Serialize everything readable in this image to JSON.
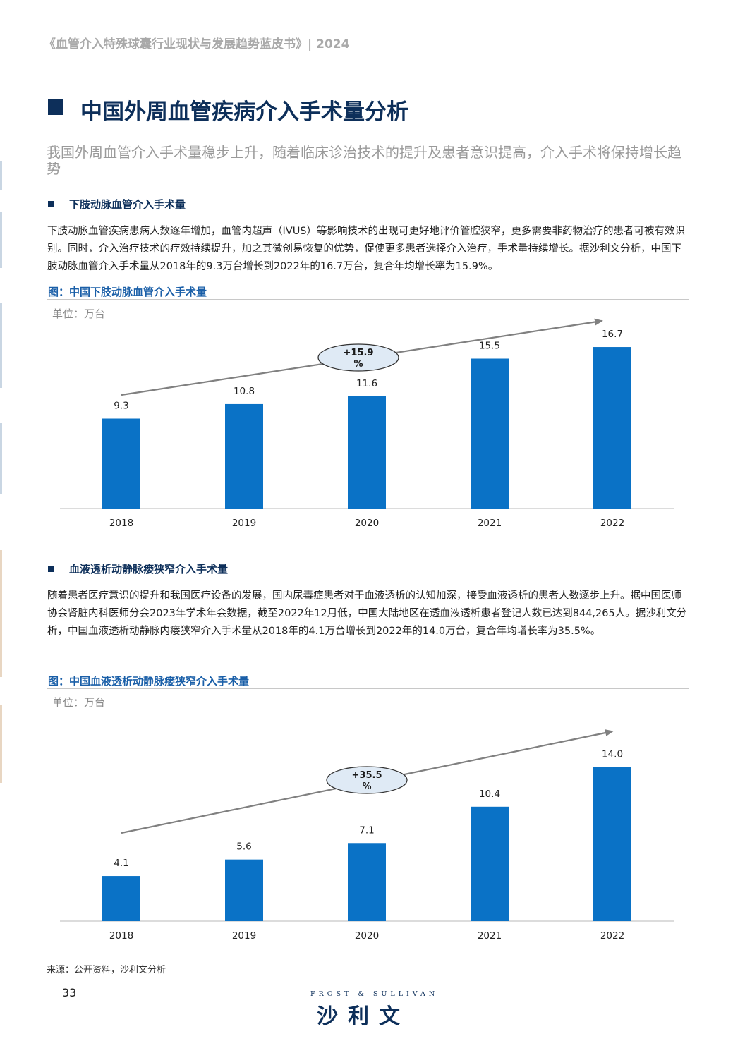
{
  "header": {
    "title": "《血管介入特殊球囊行业现状与发展趋势蓝皮书》| 2024"
  },
  "page_title": "中国外周血管疾病介入手术量分析",
  "subtitle": "我国外周血管介入手术量稳步上升，随着临床诊治技术的提升及患者意识提高，介入手术将保持增长趋势",
  "section1": {
    "title": "下肢动脉血管介入手术量",
    "paragraph": "下肢动脉血管疾病患病人数逐年增加，血管内超声（IVUS）等影响技术的出现可更好地评价管腔狭窄，更多需要非药物治疗的患者可被有效识别。同时，介入治疗技术的疗效持续提升，加之其微创易恢复的优势，促使更多患者选择介入治疗，手术量持续增长。据沙利文分析，中国下肢动脉血管介入手术量从2018年的9.3万台增长到2022年的16.7万台，复合年均增长率为15.9%。",
    "fig_title": "图：中国下肢动脉血管介入手术量",
    "unit": "单位：万台"
  },
  "section2": {
    "title": "血液透析动静脉瘘狭窄介入手术量",
    "paragraph": "随着患者医疗意识的提升和我国医疗设备的发展，国内尿毒症患者对于血液透析的认知加深，接受血液透析的患者人数逐步上升。据中国医师协会肾脏内科医师分会2023年学术年会数据，截至2022年12月低，中国大陆地区在透血液透析患者登记人数已达到844,265人。据沙利文分析，中国血液透析动静脉内瘘狭窄介入手术量从2018年的4.1万台增长到2022年的14.0万台，复合年均增长率为35.5%。",
    "fig_title": "图：中国血液透析动静脉瘘狭窄介入手术量",
    "unit": "单位：万台"
  },
  "chart_data": [
    {
      "type": "bar",
      "title": "图：中国下肢动脉血管介入手术量",
      "ylabel": "单位：万台",
      "categories": [
        "2018",
        "2019",
        "2020",
        "2021",
        "2022"
      ],
      "values": [
        9.3,
        10.8,
        11.6,
        15.5,
        16.7
      ],
      "value_labels": [
        "9.3",
        "10.8",
        "11.6",
        "15.5",
        "16.7"
      ],
      "ylim": [
        0,
        18.6
      ],
      "cagr_line1": "+15.9",
      "cagr_line2": "%",
      "bar_color": "#0a72c6"
    },
    {
      "type": "bar",
      "title": "图：中国血液透析动静脉瘘狭窄介入手术量",
      "ylabel": "单位：万台",
      "categories": [
        "2018",
        "2019",
        "2020",
        "2021",
        "2022"
      ],
      "values": [
        4.1,
        5.6,
        7.1,
        10.4,
        14.0
      ],
      "value_labels": [
        "4.1",
        "5.6",
        "7.1",
        "10.4",
        "14.0"
      ],
      "ylim": [
        0,
        16.8
      ],
      "cagr_line1": "+35.5",
      "cagr_line2": "%",
      "bar_color": "#0a72c6"
    }
  ],
  "footer": {
    "source": "来源：公开资料，沙利文分析",
    "page_number": "33",
    "logo_top": "FROST & SULLIVAN",
    "logo_bottom": "沙利文"
  }
}
